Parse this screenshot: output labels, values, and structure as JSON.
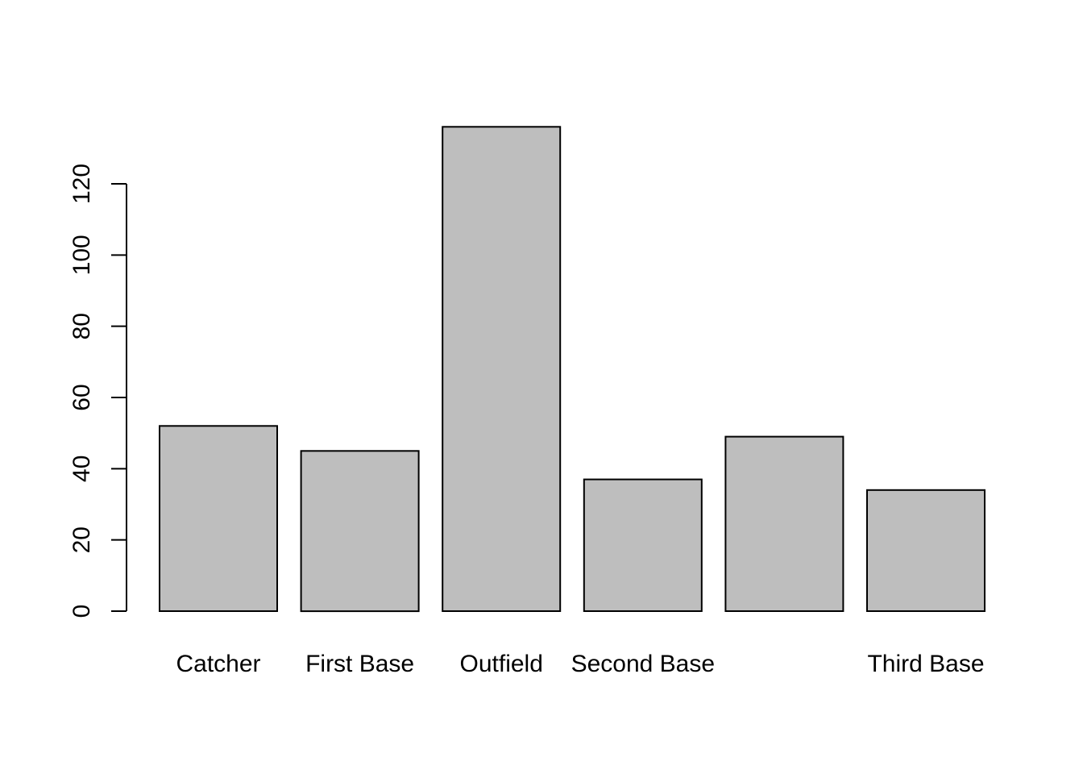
{
  "chart_data": {
    "type": "bar",
    "categories": [
      "Catcher",
      "First Base",
      "Outfield",
      "Second Base",
      "",
      "Third Base"
    ],
    "values": [
      52,
      45,
      136,
      37,
      49,
      34
    ],
    "yticks": [
      0,
      20,
      40,
      60,
      80,
      100,
      120
    ],
    "ylim": [
      0,
      136
    ],
    "title": "",
    "xlabel": "",
    "ylabel": "",
    "bar_fill": "#bebebe",
    "bar_stroke": "#000000",
    "grid": false,
    "legend": "none"
  }
}
